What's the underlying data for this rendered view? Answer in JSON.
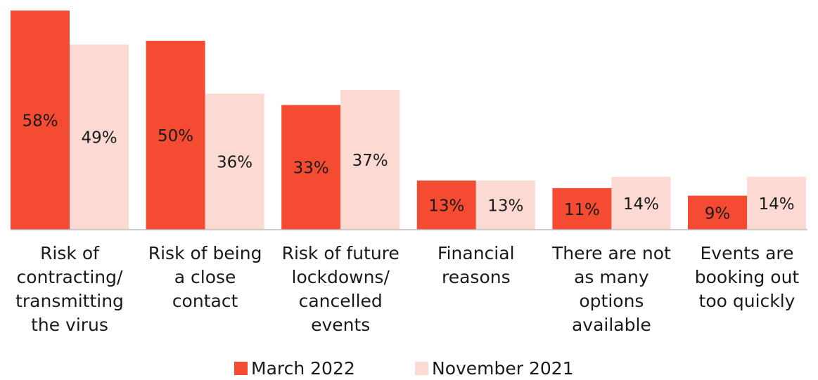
{
  "chart_data": {
    "type": "bar",
    "categories": [
      "Risk of\ncontracting/\ntransmitting\nthe virus",
      "Risk of being\na close\ncontact",
      "Risk of future\nlockdowns/\ncancelled\nevents",
      "Financial\nreasons",
      "There are not\nas many\noptions\navailable",
      "Events are\nbooking out\ntoo quickly"
    ],
    "series": [
      {
        "name": "March 2022",
        "color": "#f54b33",
        "values": [
          58,
          50,
          33,
          13,
          11,
          9
        ],
        "value_labels": [
          "58%",
          "50%",
          "33%",
          "13%",
          "11%",
          "9%"
        ]
      },
      {
        "name": "November 2021",
        "color": "#fdd9d3",
        "values": [
          49,
          36,
          37,
          13,
          14,
          14
        ],
        "value_labels": [
          "49%",
          "36%",
          "37%",
          "13%",
          "14%",
          "14%"
        ]
      }
    ]
  }
}
